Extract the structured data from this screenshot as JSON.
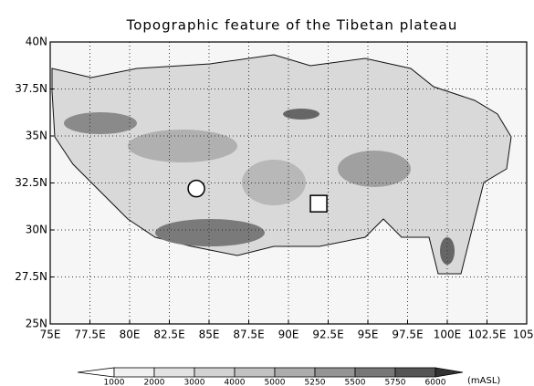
{
  "title": "Topographic feature of the Tibetan plateau",
  "xlim": [
    75,
    105
  ],
  "ylim": [
    25,
    40
  ],
  "xticks": [
    {
      "value": 75,
      "label": "75E"
    },
    {
      "value": 77.5,
      "label": "77.5E"
    },
    {
      "value": 80,
      "label": "80E"
    },
    {
      "value": 82.5,
      "label": "82.5E"
    },
    {
      "value": 85,
      "label": "85E"
    },
    {
      "value": 87.5,
      "label": "87.5E"
    },
    {
      "value": 90,
      "label": "90E"
    },
    {
      "value": 92.5,
      "label": "92.5E"
    },
    {
      "value": 95,
      "label": "95E"
    },
    {
      "value": 97.5,
      "label": "97.5E"
    },
    {
      "value": 100,
      "label": "100E"
    },
    {
      "value": 102.5,
      "label": "102.5E"
    },
    {
      "value": 105,
      "label": "105E"
    }
  ],
  "yticks": [
    {
      "value": 25,
      "label": "25N"
    },
    {
      "value": 27.5,
      "label": "27.5N"
    },
    {
      "value": 30,
      "label": "30N"
    },
    {
      "value": 32.5,
      "label": "32.5N"
    },
    {
      "value": 35,
      "label": "35N"
    },
    {
      "value": 37.5,
      "label": "37.5N"
    },
    {
      "value": 40,
      "label": "40N"
    }
  ],
  "grid": true,
  "markers": [
    {
      "shape": "circle",
      "lon": 84.2,
      "lat": 32.2
    },
    {
      "shape": "square",
      "lon": 91.9,
      "lat": 31.4
    }
  ],
  "colorbar": {
    "levels": [
      1000,
      2000,
      3000,
      4000,
      5000,
      5250,
      5500,
      5750,
      6000
    ],
    "unit": "(mASL)",
    "colors": [
      "#ffffff",
      "#f0f0f0",
      "#e2e2e2",
      "#d2d2d2",
      "#c2c2c2",
      "#acacac",
      "#949494",
      "#777777",
      "#555555",
      "#333333"
    ]
  }
}
